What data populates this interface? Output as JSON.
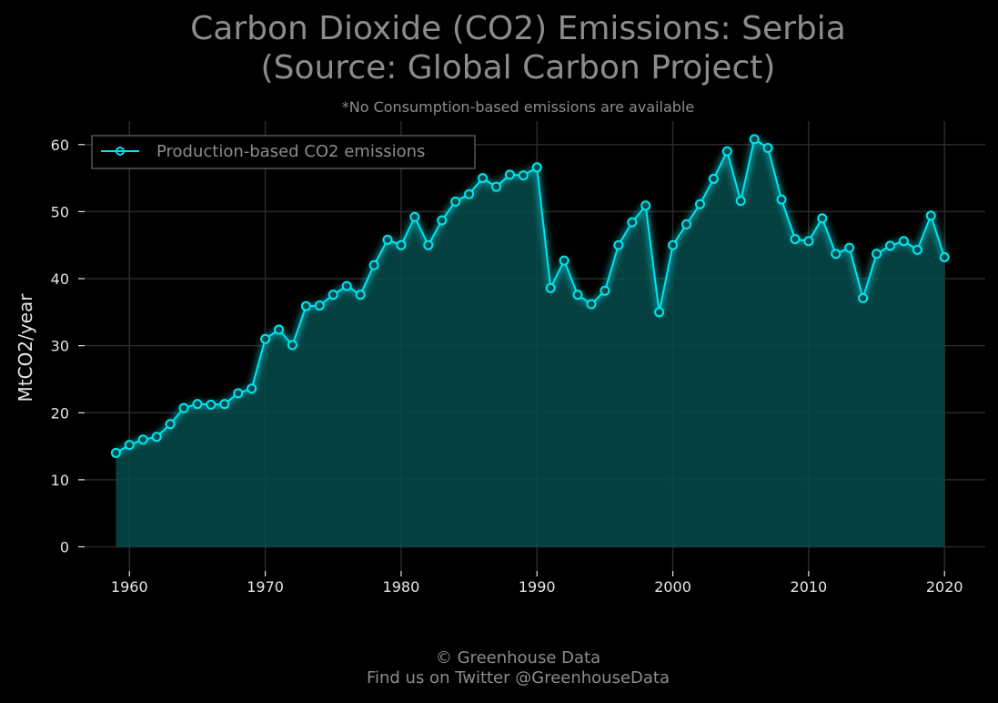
{
  "chart_data": {
    "type": "area",
    "title_lines": [
      "Carbon Dioxide (CO2) Emissions: Serbia",
      "(Source: Global Carbon Project)"
    ],
    "subtitle": "*No Consumption-based emissions are available",
    "xlabel": "",
    "ylabel": "MtCO2/year",
    "xlim": [
      1956.7,
      2023.0
    ],
    "ylim": [
      -3.6,
      63.5
    ],
    "x_ticks": [
      1960,
      1970,
      1980,
      1990,
      2000,
      2010,
      2020
    ],
    "y_ticks": [
      0,
      10,
      20,
      30,
      40,
      50,
      60
    ],
    "grid": true,
    "legend_position": "top-left",
    "series": [
      {
        "name": "Production-based CO2 emissions",
        "color": "#00e5ee",
        "fill_color": "#064b4b",
        "x": [
          1959,
          1960,
          1961,
          1962,
          1963,
          1964,
          1965,
          1966,
          1967,
          1968,
          1969,
          1970,
          1971,
          1972,
          1973,
          1974,
          1975,
          1976,
          1977,
          1978,
          1979,
          1980,
          1981,
          1982,
          1983,
          1984,
          1985,
          1986,
          1987,
          1988,
          1989,
          1990,
          1991,
          1992,
          1993,
          1994,
          1995,
          1996,
          1997,
          1998,
          1999,
          2000,
          2001,
          2002,
          2003,
          2004,
          2005,
          2006,
          2007,
          2008,
          2009,
          2010,
          2011,
          2012,
          2013,
          2014,
          2015,
          2016,
          2017,
          2018,
          2019,
          2020
        ],
        "values": [
          14.0,
          15.2,
          16.0,
          16.4,
          18.3,
          20.7,
          21.3,
          21.2,
          21.3,
          22.9,
          23.6,
          31.0,
          32.4,
          30.1,
          35.9,
          36.0,
          37.6,
          38.9,
          37.6,
          42.0,
          45.8,
          45.0,
          49.2,
          45.0,
          48.7,
          51.5,
          52.6,
          55.0,
          53.7,
          55.5,
          55.4,
          56.6,
          38.6,
          42.7,
          37.6,
          36.2,
          38.2,
          45.0,
          48.4,
          50.9,
          35.0,
          45.0,
          48.1,
          51.1,
          54.9,
          59.0,
          51.6,
          60.8,
          59.5,
          51.8,
          45.9,
          45.6,
          49.0,
          43.7,
          44.6,
          37.1,
          43.7,
          44.9,
          45.6,
          44.3,
          49.4,
          43.2
        ]
      }
    ]
  },
  "footer": {
    "copyright": "© Greenhouse Data",
    "twitter": "Find us on Twitter @GreenhouseData"
  }
}
